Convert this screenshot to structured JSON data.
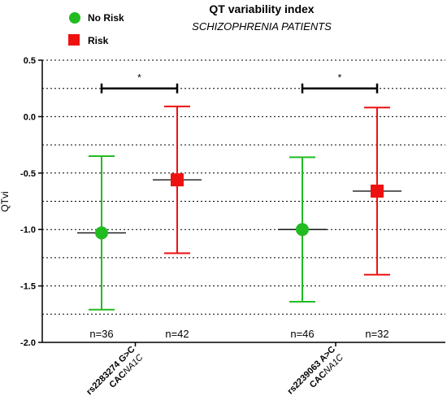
{
  "chart_data": {
    "type": "scatter",
    "title": "QT variability index",
    "subtitle": "SCHIZOPHRENIA  PATIENTS",
    "ylabel": "QTvi",
    "ylim": [
      -2.0,
      0.5
    ],
    "yticks": [
      0.5,
      0.0,
      -0.5,
      -1.0,
      -1.5,
      -2.0
    ],
    "ytick_labels": [
      "0.5",
      "0.0",
      "-0.5",
      "-1.0",
      "-1.5",
      "-2.0"
    ],
    "grid": "dotted horizontal",
    "legend_position": "top-left",
    "categories": [
      {
        "snp": "rs2283274 G>C",
        "gene_prefix": "CAC",
        "gene_italic": "NA1C"
      },
      {
        "snp": "rs2239063 A>C",
        "gene_prefix": "CAC",
        "gene_italic": "NA1C"
      }
    ],
    "series": [
      {
        "name": "No Risk",
        "color": "#22bb22",
        "marker": "circle",
        "points": [
          {
            "group": 0,
            "mean": -1.03,
            "low": -1.71,
            "high": -0.35,
            "n_label": "n=36"
          },
          {
            "group": 1,
            "mean": -1.0,
            "low": -1.64,
            "high": -0.36,
            "n_label": "n=46"
          }
        ]
      },
      {
        "name": "Risk",
        "color": "#ee1111",
        "marker": "square",
        "points": [
          {
            "group": 0,
            "mean": -0.56,
            "low": -1.21,
            "high": 0.09,
            "n_label": "n=42"
          },
          {
            "group": 1,
            "mean": -0.66,
            "low": -1.4,
            "high": 0.08,
            "n_label": "n=32"
          }
        ]
      }
    ],
    "significance": [
      {
        "group": 0,
        "y": 0.25,
        "label": "*"
      },
      {
        "group": 1,
        "y": 0.25,
        "label": "*"
      }
    ]
  }
}
